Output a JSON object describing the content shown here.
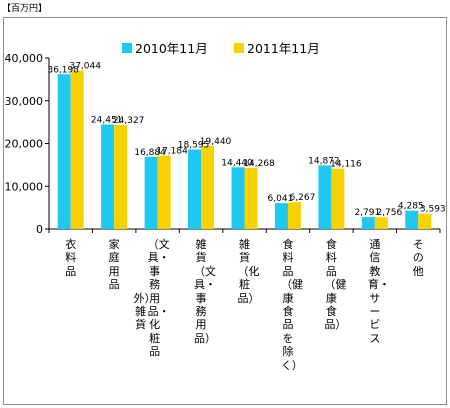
{
  "unit_label": "【百万円】",
  "chart_data": {
    "type": "bar",
    "title": "",
    "xlabel": "",
    "ylabel": "",
    "ylim": [
      0,
      40000
    ],
    "yticks": [
      0,
      10000,
      20000,
      30000,
      40000
    ],
    "ytick_labels": [
      "0",
      "10,000",
      "20,000",
      "30,000",
      "40,000"
    ],
    "grid": false,
    "legend_position": "top",
    "categories": [
      {
        "lines": [
          "衣料品"
        ]
      },
      {
        "lines": [
          "家庭用品"
        ]
      },
      {
        "lines": [
          "（文具・事務用品・化粧品",
          "外）雑貨"
        ]
      },
      {
        "lines": [
          "雑貨（文具・事務用品）"
        ]
      },
      {
        "lines": [
          "雑貨（化粧品）"
        ]
      },
      {
        "lines": [
          "食料品（健康食品を除く）"
        ]
      },
      {
        "lines": [
          "食料品（健康食品）"
        ]
      },
      {
        "lines": [
          "通信教育・サービス"
        ]
      },
      {
        "lines": [
          "その他"
        ]
      }
    ],
    "series": [
      {
        "name": "2010年11月",
        "color": "#1ec8f0",
        "values": [
          36198,
          24451,
          16884,
          18595,
          14440,
          6041,
          14872,
          2791,
          4285
        ],
        "labels": [
          "36,198",
          "24,451",
          "16,884",
          "18,595",
          "14,440",
          "6,041",
          "14,872",
          "2,791",
          "4,285"
        ]
      },
      {
        "name": "2011年11月",
        "color": "#f6d200",
        "values": [
          37044,
          24327,
          17184,
          19440,
          14268,
          6267,
          14116,
          2756,
          3593
        ],
        "labels": [
          "37,044",
          "24,327",
          "17,184",
          "19,440",
          "14,268",
          "6,267",
          "14,116",
          "2,756",
          "3,593"
        ]
      }
    ]
  }
}
